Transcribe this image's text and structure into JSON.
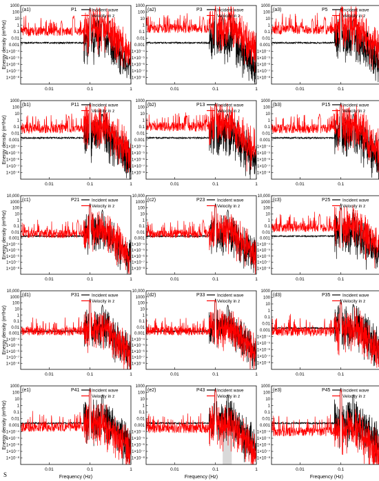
{
  "figure": {
    "corner_mark": "S",
    "ylabel": "Energy density (m²/Hz)",
    "xlabel": "Frequency (Hz)",
    "legend": [
      "Incident wave",
      "Velocity in z"
    ]
  },
  "chart_data": [
    {
      "type": "line",
      "panel_label": "(a1)",
      "title": "P1",
      "xscale": "log",
      "xlim": [
        0.002,
        1
      ],
      "yscale": "log",
      "ylim": [
        1e-09,
        1000
      ],
      "ytick_labels": [
        "1000",
        "100",
        "10",
        "1",
        "0.1",
        "0.01",
        "0.001",
        "1×10⁻⁴",
        "1×10⁻⁵",
        "1×10⁻⁶",
        "1×10⁻⁷",
        "1×10⁻⁸"
      ],
      "xtick_labels": [
        "0.01",
        "0.1",
        "1"
      ],
      "xlabel": "",
      "ylabel": "Energy density (m²/Hz)",
      "legend_position": "top-right",
      "series": [
        {
          "name": "Incident wave",
          "color": "#000000",
          "baseline": 0.002,
          "peaks": [
            [
              0.1,
              500
            ],
            [
              0.15,
              20
            ],
            [
              0.2,
              10
            ],
            [
              0.3,
              5
            ]
          ]
        },
        {
          "name": "Velocity in z",
          "color": "#ff0000",
          "baseline": 0.1,
          "peaks": [
            [
              0.02,
              5
            ],
            [
              0.04,
              30
            ],
            [
              0.1,
              300
            ],
            [
              0.2,
              5
            ]
          ]
        }
      ]
    },
    {
      "type": "line",
      "panel_label": "(a2)",
      "title": "P3",
      "xscale": "log",
      "xlim": [
        0.002,
        1
      ],
      "yscale": "log",
      "ylim": [
        1e-09,
        1000
      ],
      "ytick_labels": [
        "1000",
        "100",
        "10",
        "1",
        "0.1",
        "0.01",
        "0.001",
        "1×10⁻⁴",
        "1×10⁻⁵",
        "1×10⁻⁶",
        "1×10⁻⁷",
        "1×10⁻⁸"
      ],
      "xtick_labels": [
        "0.01",
        "0.1",
        "1"
      ],
      "xlabel": "",
      "ylabel": "",
      "legend_position": "top-right",
      "series": [
        {
          "name": "Incident wave",
          "color": "#000000",
          "baseline": 0.002,
          "peaks": [
            [
              0.1,
              500
            ],
            [
              0.15,
              20
            ],
            [
              0.3,
              5
            ]
          ]
        },
        {
          "name": "Velocity in z",
          "color": "#ff0000",
          "baseline": 0.3,
          "peaks": [
            [
              0.02,
              5
            ],
            [
              0.05,
              20
            ],
            [
              0.1,
              300
            ]
          ]
        }
      ]
    },
    {
      "type": "line",
      "panel_label": "(a3)",
      "title": "P5",
      "xscale": "log",
      "xlim": [
        0.002,
        1
      ],
      "yscale": "log",
      "ylim": [
        1e-09,
        1000
      ],
      "ytick_labels": [
        "1000",
        "100",
        "10",
        "1",
        "0.1",
        "0.01",
        "0.001",
        "1×10⁻⁴",
        "1×10⁻⁵",
        "1×10⁻⁶",
        "1×10⁻⁷",
        "1×10⁻⁸"
      ],
      "xtick_labels": [
        "0.01",
        "0.1",
        "1"
      ],
      "xlabel": "",
      "ylabel": "",
      "legend_position": "top-right",
      "series": [
        {
          "name": "Incident wave",
          "color": "#000000",
          "baseline": 0.002,
          "peaks": [
            [
              0.1,
              500
            ],
            [
              0.2,
              10
            ]
          ]
        },
        {
          "name": "Velocity in z",
          "color": "#ff0000",
          "baseline": 0.2,
          "peaks": [
            [
              0.02,
              10
            ],
            [
              0.04,
              20
            ],
            [
              0.1,
              300
            ]
          ]
        }
      ]
    },
    {
      "type": "line",
      "panel_label": "(b1)",
      "title": "P11",
      "xscale": "log",
      "xlim": [
        0.002,
        1
      ],
      "yscale": "log",
      "ylim": [
        1e-09,
        1000
      ],
      "ytick_labels": [
        "1000",
        "100",
        "10",
        "1",
        "0.1",
        "0.01",
        "0.001",
        "1×10⁻⁴",
        "1×10⁻⁵",
        "1×10⁻⁶",
        "1×10⁻⁷",
        "1×10⁻⁸"
      ],
      "xtick_labels": [
        "0.01",
        "0.1",
        "1"
      ],
      "xlabel": "",
      "ylabel": "Energy density (m²/Hz)",
      "legend_position": "top-right",
      "series": [
        {
          "name": "Incident wave",
          "color": "#000000",
          "baseline": 0.002,
          "peaks": [
            [
              0.1,
              500
            ],
            [
              0.2,
              10
            ]
          ]
        },
        {
          "name": "Velocity in z",
          "color": "#ff0000",
          "baseline": 0.05,
          "peaks": [
            [
              0.03,
              5
            ],
            [
              0.1,
              300
            ]
          ]
        }
      ]
    },
    {
      "type": "line",
      "panel_label": "(b2)",
      "title": "P13",
      "xscale": "log",
      "xlim": [
        0.002,
        1
      ],
      "yscale": "log",
      "ylim": [
        1e-09,
        1000
      ],
      "ytick_labels": [
        "1000",
        "100",
        "10",
        "1",
        "0.1",
        "0.01",
        "0.001",
        "1×10⁻⁴",
        "1×10⁻⁵",
        "1×10⁻⁶",
        "1×10⁻⁷",
        "1×10⁻⁸"
      ],
      "xtick_labels": [
        "0.01",
        "0.1",
        "1"
      ],
      "xlabel": "",
      "ylabel": "",
      "legend_position": "top-right",
      "series": [
        {
          "name": "Incident wave",
          "color": "#000000",
          "baseline": 0.002,
          "peaks": [
            [
              0.1,
              500
            ],
            [
              0.2,
              10
            ]
          ]
        },
        {
          "name": "Velocity in z",
          "color": "#ff0000",
          "baseline": 0.1,
          "peaks": [
            [
              0.02,
              5
            ],
            [
              0.1,
              300
            ]
          ]
        }
      ]
    },
    {
      "type": "line",
      "panel_label": "(b3)",
      "title": "P15",
      "xscale": "log",
      "xlim": [
        0.002,
        1
      ],
      "yscale": "log",
      "ylim": [
        1e-09,
        1000
      ],
      "ytick_labels": [
        "1000",
        "100",
        "10",
        "1",
        "0.1",
        "0.01",
        "0.001",
        "1×10⁻⁴",
        "1×10⁻⁵",
        "1×10⁻⁶",
        "1×10⁻⁷",
        "1×10⁻⁸"
      ],
      "xtick_labels": [
        "0.01",
        "0.1",
        "1"
      ],
      "xlabel": "",
      "ylabel": "",
      "legend_position": "top-right",
      "series": [
        {
          "name": "Incident wave",
          "color": "#000000",
          "baseline": 0.002,
          "peaks": [
            [
              0.1,
              500
            ],
            [
              0.2,
              10
            ]
          ]
        },
        {
          "name": "Velocity in z",
          "color": "#ff0000",
          "baseline": 0.05,
          "peaks": [
            [
              0.03,
              10
            ],
            [
              0.1,
              300
            ]
          ]
        }
      ]
    },
    {
      "type": "line",
      "panel_label": "(c1)",
      "title": "P21",
      "xscale": "log",
      "xlim": [
        0.002,
        1
      ],
      "yscale": "log",
      "ylim": [
        1e-09,
        10000
      ],
      "ytick_labels": [
        "10,000",
        "1000",
        "100",
        "10",
        "1",
        "0.1",
        "0.01",
        "0.001",
        "1×10⁻⁴",
        "1×10⁻⁵",
        "1×10⁻⁶",
        "1×10⁻⁷",
        "1×10⁻⁸"
      ],
      "xtick_labels": [
        "0.01",
        "0.1",
        "1"
      ],
      "xlabel": "",
      "ylabel": "Energy density (m²/Hz)",
      "legend_position": "top-right",
      "series": [
        {
          "name": "Incident wave",
          "color": "#000000",
          "baseline": 0.002,
          "peaks": [
            [
              0.1,
              500
            ],
            [
              0.2,
              50
            ]
          ]
        },
        {
          "name": "Velocity in z",
          "color": "#ff0000",
          "baseline": 0.005,
          "peaks": [
            [
              0.05,
              1
            ],
            [
              0.1,
              300
            ]
          ]
        }
      ]
    },
    {
      "type": "line",
      "panel_label": "(c2)",
      "title": "P23",
      "xscale": "log",
      "xlim": [
        0.002,
        1
      ],
      "yscale": "log",
      "ylim": [
        1e-09,
        10000
      ],
      "ytick_labels": [
        "10,000",
        "1000",
        "100",
        "10",
        "1",
        "0.1",
        "0.01",
        "0.001",
        "1×10⁻⁴",
        "1×10⁻⁵",
        "1×10⁻⁶",
        "1×10⁻⁷",
        "1×10⁻⁸"
      ],
      "xtick_labels": [
        "0.01",
        "0.1",
        "1"
      ],
      "xlabel": "",
      "ylabel": "",
      "legend_position": "top-right",
      "series": [
        {
          "name": "Incident wave",
          "color": "#000000",
          "baseline": 0.002,
          "peaks": [
            [
              0.1,
              500
            ],
            [
              0.2,
              50
            ]
          ]
        },
        {
          "name": "Velocity in z",
          "color": "#ff0000",
          "baseline": 0.005,
          "peaks": [
            [
              0.05,
              1
            ],
            [
              0.1,
              300
            ]
          ]
        }
      ]
    },
    {
      "type": "line",
      "panel_label": "(c3)",
      "title": "P25",
      "xscale": "log",
      "xlim": [
        0.002,
        1
      ],
      "yscale": "log",
      "ylim": [
        1e-09,
        10000
      ],
      "ytick_labels": [
        "10,000",
        "1000",
        "100",
        "10",
        "1",
        "0.1",
        "0.01",
        "0.001",
        "1×10⁻⁴",
        "1×10⁻⁵",
        "1×10⁻⁶",
        "1×10⁻⁷",
        "1×10⁻⁸"
      ],
      "xtick_labels": [
        "0.01",
        "0.1",
        "1"
      ],
      "xlabel": "",
      "ylabel": "",
      "legend_position": "top-right",
      "series": [
        {
          "name": "Incident wave",
          "color": "#000000",
          "baseline": 0.002,
          "peaks": [
            [
              0.1,
              500
            ],
            [
              0.2,
              50
            ]
          ]
        },
        {
          "name": "Velocity in z",
          "color": "#ff0000",
          "baseline": 0.05,
          "peaks": [
            [
              0.03,
              10
            ],
            [
              0.1,
              100
            ]
          ]
        }
      ]
    },
    {
      "type": "line",
      "panel_label": "(d1)",
      "title": "P31",
      "xscale": "log",
      "xlim": [
        0.002,
        1
      ],
      "yscale": "log",
      "ylim": [
        1e-09,
        10000
      ],
      "ytick_labels": [
        "10,000",
        "1000",
        "100",
        "10",
        "1",
        "0.1",
        "0.01",
        "0.001",
        "1×10⁻⁴",
        "1×10⁻⁵",
        "1×10⁻⁶",
        "1×10⁻⁷",
        "1×10⁻⁸"
      ],
      "xtick_labels": [
        "0.01",
        "0.1",
        "1"
      ],
      "xlabel": "",
      "ylabel": "Energy density (m²/Hz)",
      "legend_position": "top-right",
      "series": [
        {
          "name": "Incident wave",
          "color": "#000000",
          "baseline": 0.002,
          "peaks": [
            [
              0.1,
              500
            ],
            [
              0.2,
              50
            ]
          ]
        },
        {
          "name": "Velocity in z",
          "color": "#ff0000",
          "baseline": 0.002,
          "peaks": [
            [
              0.1,
              300
            ]
          ]
        }
      ]
    },
    {
      "type": "line",
      "panel_label": "(d2)",
      "title": "P33",
      "xscale": "log",
      "xlim": [
        0.002,
        1
      ],
      "yscale": "log",
      "ylim": [
        1e-09,
        10000
      ],
      "ytick_labels": [
        "10,000",
        "1000",
        "100",
        "10",
        "1",
        "0.1",
        "0.01",
        "0.001",
        "1×10⁻⁴",
        "1×10⁻⁵",
        "1×10⁻⁶",
        "1×10⁻⁷",
        "1×10⁻⁸"
      ],
      "xtick_labels": [
        "0.01",
        "0.1",
        "1"
      ],
      "xlabel": "",
      "ylabel": "",
      "legend_position": "top-right",
      "series": [
        {
          "name": "Incident wave",
          "color": "#000000",
          "baseline": 0.002,
          "peaks": [
            [
              0.1,
              500
            ],
            [
              0.2,
              50
            ]
          ]
        },
        {
          "name": "Velocity in z",
          "color": "#ff0000",
          "baseline": 0.002,
          "peaks": [
            [
              0.1,
              300
            ]
          ]
        }
      ]
    },
    {
      "type": "line",
      "panel_label": "(d3)",
      "title": "P35",
      "xscale": "log",
      "xlim": [
        0.002,
        1
      ],
      "yscale": "log",
      "ylim": [
        1e-09,
        1000
      ],
      "ytick_labels": [
        "1000",
        "100",
        "10",
        "1",
        "0.1",
        "0.01",
        "0.001",
        "1×10⁻⁴",
        "1×10⁻⁵",
        "1×10⁻⁶",
        "1×10⁻⁷",
        "1×10⁻⁸"
      ],
      "xtick_labels": [
        "0.01",
        "0.1",
        "1"
      ],
      "xlabel": "",
      "ylabel": "",
      "legend_position": "top-right",
      "series": [
        {
          "name": "Incident wave",
          "color": "#000000",
          "baseline": 0.002,
          "peaks": [
            [
              0.1,
              50
            ],
            [
              0.2,
              10
            ]
          ]
        },
        {
          "name": "Velocity in z",
          "color": "#ff0000",
          "baseline": 0.0006,
          "peaks": [
            [
              0.1,
              20
            ]
          ]
        }
      ]
    },
    {
      "type": "line",
      "panel_label": "(e1)",
      "title": "P41",
      "xscale": "log",
      "xlim": [
        0.002,
        1
      ],
      "yscale": "log",
      "ylim": [
        1e-09,
        1000
      ],
      "ytick_labels": [
        "1000",
        "100",
        "10",
        "1",
        "0.1",
        "0.01",
        "0.001",
        "1×10⁻⁴",
        "1×10⁻⁵",
        "1×10⁻⁶",
        "1×10⁻⁷",
        "1×10⁻⁸"
      ],
      "xtick_labels": [
        "0.01",
        "0.1",
        "1"
      ],
      "xlabel": "Frequency (Hz)",
      "ylabel": "Energy density (m²/Hz)",
      "legend_position": "top-right",
      "series": [
        {
          "name": "Incident wave",
          "color": "#000000",
          "baseline": 0.002,
          "peaks": [
            [
              0.1,
              500
            ],
            [
              0.2,
              50
            ]
          ]
        },
        {
          "name": "Velocity in z",
          "color": "#ff0000",
          "baseline": 0.0005,
          "peaks": [
            [
              0.1,
              300
            ]
          ]
        }
      ]
    },
    {
      "type": "line",
      "panel_label": "(e2)",
      "title": "P43",
      "xscale": "log",
      "xlim": [
        0.002,
        1
      ],
      "yscale": "log",
      "ylim": [
        1e-09,
        1000
      ],
      "ytick_labels": [
        "1000",
        "100",
        "10",
        "1",
        "0.1",
        "0.01",
        "0.001",
        "1×10⁻⁴",
        "1×10⁻⁵",
        "1×10⁻⁶",
        "1×10⁻⁷",
        "1×10⁻⁸"
      ],
      "xtick_labels": [
        "0.01",
        "0.1",
        "1"
      ],
      "xlabel": "Frequency (Hz)",
      "ylabel": "",
      "legend_position": "top-right",
      "shaded_band": [
        0.15,
        0.25
      ],
      "series": [
        {
          "name": "Incident wave",
          "color": "#000000",
          "baseline": 0.002,
          "peaks": [
            [
              0.1,
              500
            ],
            [
              0.2,
              50
            ]
          ]
        },
        {
          "name": "Velocity in z",
          "color": "#ff0000",
          "baseline": 0.0003,
          "peaks": [
            [
              0.1,
              300
            ]
          ]
        }
      ]
    },
    {
      "type": "line",
      "panel_label": "(e3)",
      "title": "P45",
      "xscale": "log",
      "xlim": [
        0.002,
        1
      ],
      "yscale": "log",
      "ylim": [
        1e-09,
        1000
      ],
      "ytick_labels": [
        "1000",
        "100",
        "10",
        "1",
        "0.1",
        "0.01",
        "0.001",
        "1×10⁻⁴",
        "1×10⁻⁵",
        "1×10⁻⁶",
        "1×10⁻⁷",
        "1×10⁻⁸"
      ],
      "xtick_labels": [
        "0.01",
        "0.1",
        "1"
      ],
      "xlabel": "Frequency (Hz)",
      "ylabel": "",
      "legend_position": "top-right",
      "series": [
        {
          "name": "Incident wave",
          "color": "#000000",
          "baseline": 0.002,
          "peaks": [
            [
              0.1,
              500
            ],
            [
              0.2,
              50
            ]
          ]
        },
        {
          "name": "Velocity in z",
          "color": "#ff0000",
          "baseline": 0.0001,
          "peaks": [
            [
              0.1,
              300
            ]
          ]
        }
      ]
    }
  ]
}
